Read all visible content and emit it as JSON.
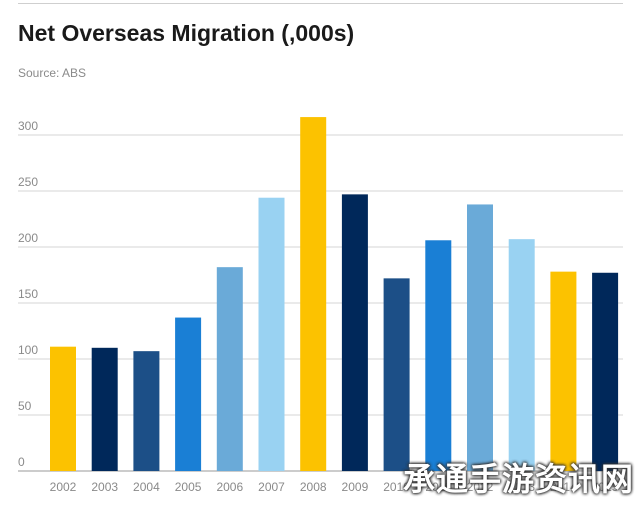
{
  "chart_data": {
    "type": "bar",
    "title": "Net Overseas Migration (,000s)",
    "subtitle": "Source: ABS",
    "xlabel": "",
    "ylabel": "",
    "ylim": [
      0,
      300
    ],
    "yticks": [
      0,
      50,
      100,
      150,
      200,
      250,
      300
    ],
    "grid": true,
    "legend": "none",
    "categories": [
      "2002",
      "2003",
      "2004",
      "2005",
      "2006",
      "2007",
      "2008",
      "2009",
      "2010",
      "2011",
      "2012",
      "2013",
      "2014",
      "2015"
    ],
    "values": [
      111,
      110,
      107,
      137,
      182,
      244,
      316,
      247,
      172,
      206,
      238,
      207,
      178,
      177
    ],
    "colors": [
      "#fcc200",
      "#00285a",
      "#1c4f87",
      "#1a7fd5",
      "#6aaad8",
      "#99d2f2",
      "#fcc200",
      "#00285a",
      "#1c4f87",
      "#1a7fd5",
      "#6aaad8",
      "#99d2f2",
      "#fcc200",
      "#00285a"
    ]
  },
  "watermark": "承通手游资讯网"
}
